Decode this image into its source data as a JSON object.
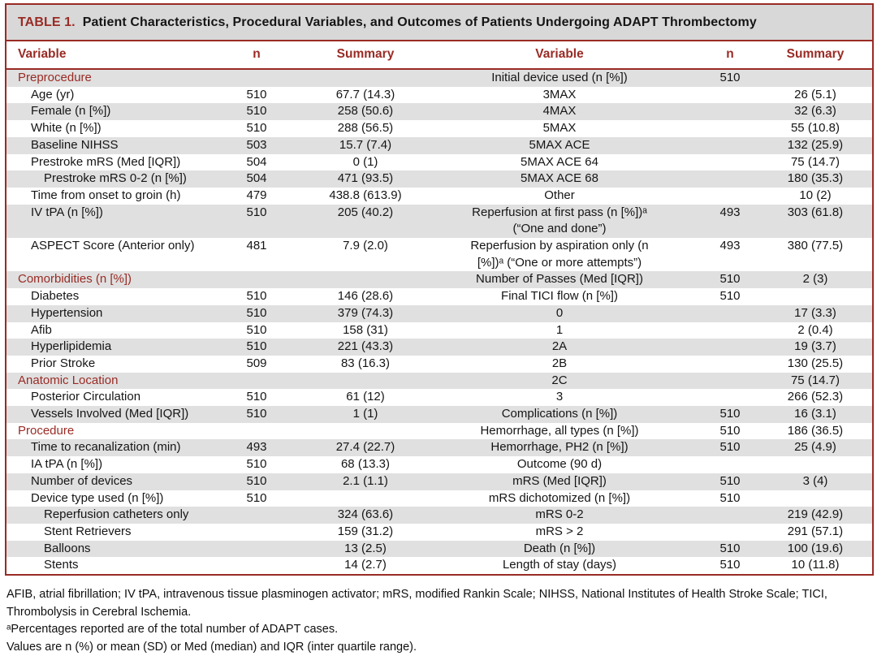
{
  "title": {
    "label": "TABLE 1.",
    "text": "Patient Characteristics, Procedural Variables, and Outcomes of Patients Undergoing ADAPT Thrombectomy"
  },
  "header": {
    "variable_left": "Variable",
    "n_left": "n",
    "summary_left": "Summary",
    "variable_right": "Variable",
    "n_right": "n",
    "summary_right": "Summary"
  },
  "colors": {
    "accent_maroon": "#992b25",
    "row_shade": "#e0e0e0",
    "title_bar_gray": "#d8d8d8"
  },
  "rows": [
    {
      "left": {
        "label": "Preprocedure",
        "indent": 0,
        "section": true,
        "n": "",
        "summary": ""
      },
      "right": {
        "label": "Initial device used (n [%])",
        "n": "510",
        "summary": ""
      },
      "tall": false
    },
    {
      "left": {
        "label": "Age (yr)",
        "indent": 1,
        "section": false,
        "n": "510",
        "summary": "67.7 (14.3)"
      },
      "right": {
        "label": "3MAX",
        "n": "",
        "summary": "26 (5.1)"
      },
      "tall": false
    },
    {
      "left": {
        "label": "Female (n [%])",
        "indent": 1,
        "section": false,
        "n": "510",
        "summary": "258 (50.6)"
      },
      "right": {
        "label": "4MAX",
        "n": "",
        "summary": "32 (6.3)"
      },
      "tall": false
    },
    {
      "left": {
        "label": "White (n [%])",
        "indent": 1,
        "section": false,
        "n": "510",
        "summary": "288 (56.5)"
      },
      "right": {
        "label": "5MAX",
        "n": "",
        "summary": "55 (10.8)"
      },
      "tall": false
    },
    {
      "left": {
        "label": "Baseline NIHSS",
        "indent": 1,
        "section": false,
        "n": "503",
        "summary": "15.7 (7.4)"
      },
      "right": {
        "label": "5MAX ACE",
        "n": "",
        "summary": "132 (25.9)"
      },
      "tall": false
    },
    {
      "left": {
        "label": "Prestroke mRS (Med [IQR])",
        "indent": 1,
        "section": false,
        "n": "504",
        "summary": "0 (1)"
      },
      "right": {
        "label": "5MAX ACE 64",
        "n": "",
        "summary": "75 (14.7)"
      },
      "tall": false
    },
    {
      "left": {
        "label": "Prestroke mRS 0-2 (n [%])",
        "indent": 2,
        "section": false,
        "n": "504",
        "summary": "471 (93.5)"
      },
      "right": {
        "label": "5MAX ACE 68",
        "n": "",
        "summary": "180 (35.3)"
      },
      "tall": false
    },
    {
      "left": {
        "label": "Time from onset to groin (h)",
        "indent": 1,
        "section": false,
        "n": "479",
        "summary": "438.8 (613.9)"
      },
      "right": {
        "label": "Other",
        "n": "",
        "summary": "10 (2)"
      },
      "tall": false
    },
    {
      "left": {
        "label": "IV tPA (n [%])",
        "indent": 1,
        "section": false,
        "n": "510",
        "summary": "205 (40.2)"
      },
      "right": {
        "label": "Reperfusion at first pass (n [%])ᵃ",
        "label2": "(“One and done”)",
        "n": "493",
        "summary": "303 (61.8)"
      },
      "tall": true
    },
    {
      "left": {
        "label": "ASPECT Score (Anterior only)",
        "indent": 1,
        "section": false,
        "n": "481",
        "summary": "7.9 (2.0)"
      },
      "right": {
        "label": "Reperfusion by aspiration only (n",
        "label2": "[%])ᵃ (“One or more attempts”)",
        "n": "493",
        "summary": "380 (77.5)"
      },
      "tall": true
    },
    {
      "left": {
        "label": "Comorbidities (n [%])",
        "indent": 0,
        "section": true,
        "n": "",
        "summary": ""
      },
      "right": {
        "label": "Number of Passes (Med [IQR])",
        "n": "510",
        "summary": "2 (3)"
      },
      "tall": false
    },
    {
      "left": {
        "label": "Diabetes",
        "indent": 1,
        "section": false,
        "n": "510",
        "summary": "146 (28.6)"
      },
      "right": {
        "label": "Final TICI flow (n [%])",
        "n": "510",
        "summary": ""
      },
      "tall": false
    },
    {
      "left": {
        "label": "Hypertension",
        "indent": 1,
        "section": false,
        "n": "510",
        "summary": "379 (74.3)"
      },
      "right": {
        "label": "0",
        "n": "",
        "summary": "17 (3.3)"
      },
      "tall": false
    },
    {
      "left": {
        "label": "Afib",
        "indent": 1,
        "section": false,
        "n": "510",
        "summary": "158 (31)"
      },
      "right": {
        "label": "1",
        "n": "",
        "summary": "2 (0.4)"
      },
      "tall": false
    },
    {
      "left": {
        "label": "Hyperlipidemia",
        "indent": 1,
        "section": false,
        "n": "510",
        "summary": "221 (43.3)"
      },
      "right": {
        "label": "2A",
        "n": "",
        "summary": "19 (3.7)"
      },
      "tall": false
    },
    {
      "left": {
        "label": "Prior Stroke",
        "indent": 1,
        "section": false,
        "n": "509",
        "summary": "83 (16.3)"
      },
      "right": {
        "label": "2B",
        "n": "",
        "summary": "130 (25.5)"
      },
      "tall": false
    },
    {
      "left": {
        "label": "Anatomic Location",
        "indent": 0,
        "section": true,
        "n": "",
        "summary": ""
      },
      "right": {
        "label": "2C",
        "n": "",
        "summary": "75 (14.7)"
      },
      "tall": false
    },
    {
      "left": {
        "label": "Posterior Circulation",
        "indent": 1,
        "section": false,
        "n": "510",
        "summary": "61 (12)"
      },
      "right": {
        "label": "3",
        "n": "",
        "summary": "266 (52.3)"
      },
      "tall": false
    },
    {
      "left": {
        "label": "Vessels Involved (Med [IQR])",
        "indent": 1,
        "section": false,
        "n": "510",
        "summary": "1 (1)"
      },
      "right": {
        "label": "Complications (n [%])",
        "n": "510",
        "summary": "16 (3.1)"
      },
      "tall": false
    },
    {
      "left": {
        "label": "Procedure",
        "indent": 0,
        "section": true,
        "n": "",
        "summary": ""
      },
      "right": {
        "label": "Hemorrhage, all types (n [%])",
        "n": "510",
        "summary": "186 (36.5)"
      },
      "tall": false
    },
    {
      "left": {
        "label": "Time to recanalization (min)",
        "indent": 1,
        "section": false,
        "n": "493",
        "summary": "27.4 (22.7)"
      },
      "right": {
        "label": "Hemorrhage, PH2 (n [%])",
        "n": "510",
        "summary": "25 (4.9)"
      },
      "tall": false
    },
    {
      "left": {
        "label": "IA tPA (n [%])",
        "indent": 1,
        "section": false,
        "n": "510",
        "summary": "68 (13.3)"
      },
      "right": {
        "label": "Outcome (90 d)",
        "n": "",
        "summary": ""
      },
      "tall": false
    },
    {
      "left": {
        "label": "Number of devices",
        "indent": 1,
        "section": false,
        "n": "510",
        "summary": "2.1 (1.1)"
      },
      "right": {
        "label": "mRS (Med [IQR])",
        "n": "510",
        "summary": "3 (4)"
      },
      "tall": false
    },
    {
      "left": {
        "label": "Device type used (n [%])",
        "indent": 1,
        "section": false,
        "n": "510",
        "summary": ""
      },
      "right": {
        "label": "mRS dichotomized (n [%])",
        "n": "510",
        "summary": ""
      },
      "tall": false
    },
    {
      "left": {
        "label": "Reperfusion catheters only",
        "indent": 2,
        "section": false,
        "n": "",
        "summary": "324 (63.6)"
      },
      "right": {
        "label": "mRS 0-2",
        "n": "",
        "summary": "219 (42.9)"
      },
      "tall": false
    },
    {
      "left": {
        "label": "Stent Retrievers",
        "indent": 2,
        "section": false,
        "n": "",
        "summary": "159 (31.2)"
      },
      "right": {
        "label": "mRS > 2",
        "n": "",
        "summary": "291 (57.1)"
      },
      "tall": false
    },
    {
      "left": {
        "label": "Balloons",
        "indent": 2,
        "section": false,
        "n": "",
        "summary": "13 (2.5)"
      },
      "right": {
        "label": "Death (n [%])",
        "n": "510",
        "summary": "100 (19.6)"
      },
      "tall": false
    },
    {
      "left": {
        "label": "Stents",
        "indent": 2,
        "section": false,
        "n": "",
        "summary": "14 (2.7)"
      },
      "right": {
        "label": "Length of stay (days)",
        "n": "510",
        "summary": "10 (11.8)"
      },
      "tall": false
    }
  ],
  "footnotes": [
    "AFIB, atrial fibrillation; IV tPA, intravenous tissue plasminogen activator; mRS, modified Rankin Scale; NIHSS, National Institutes of Health Stroke Scale; TICI, Thrombolysis in Cerebral Ischemia.",
    "ᵃPercentages reported are of the total number of ADAPT cases.",
    "Values are n (%) or mean (SD) or Med (median) and IQR (inter quartile range)."
  ]
}
